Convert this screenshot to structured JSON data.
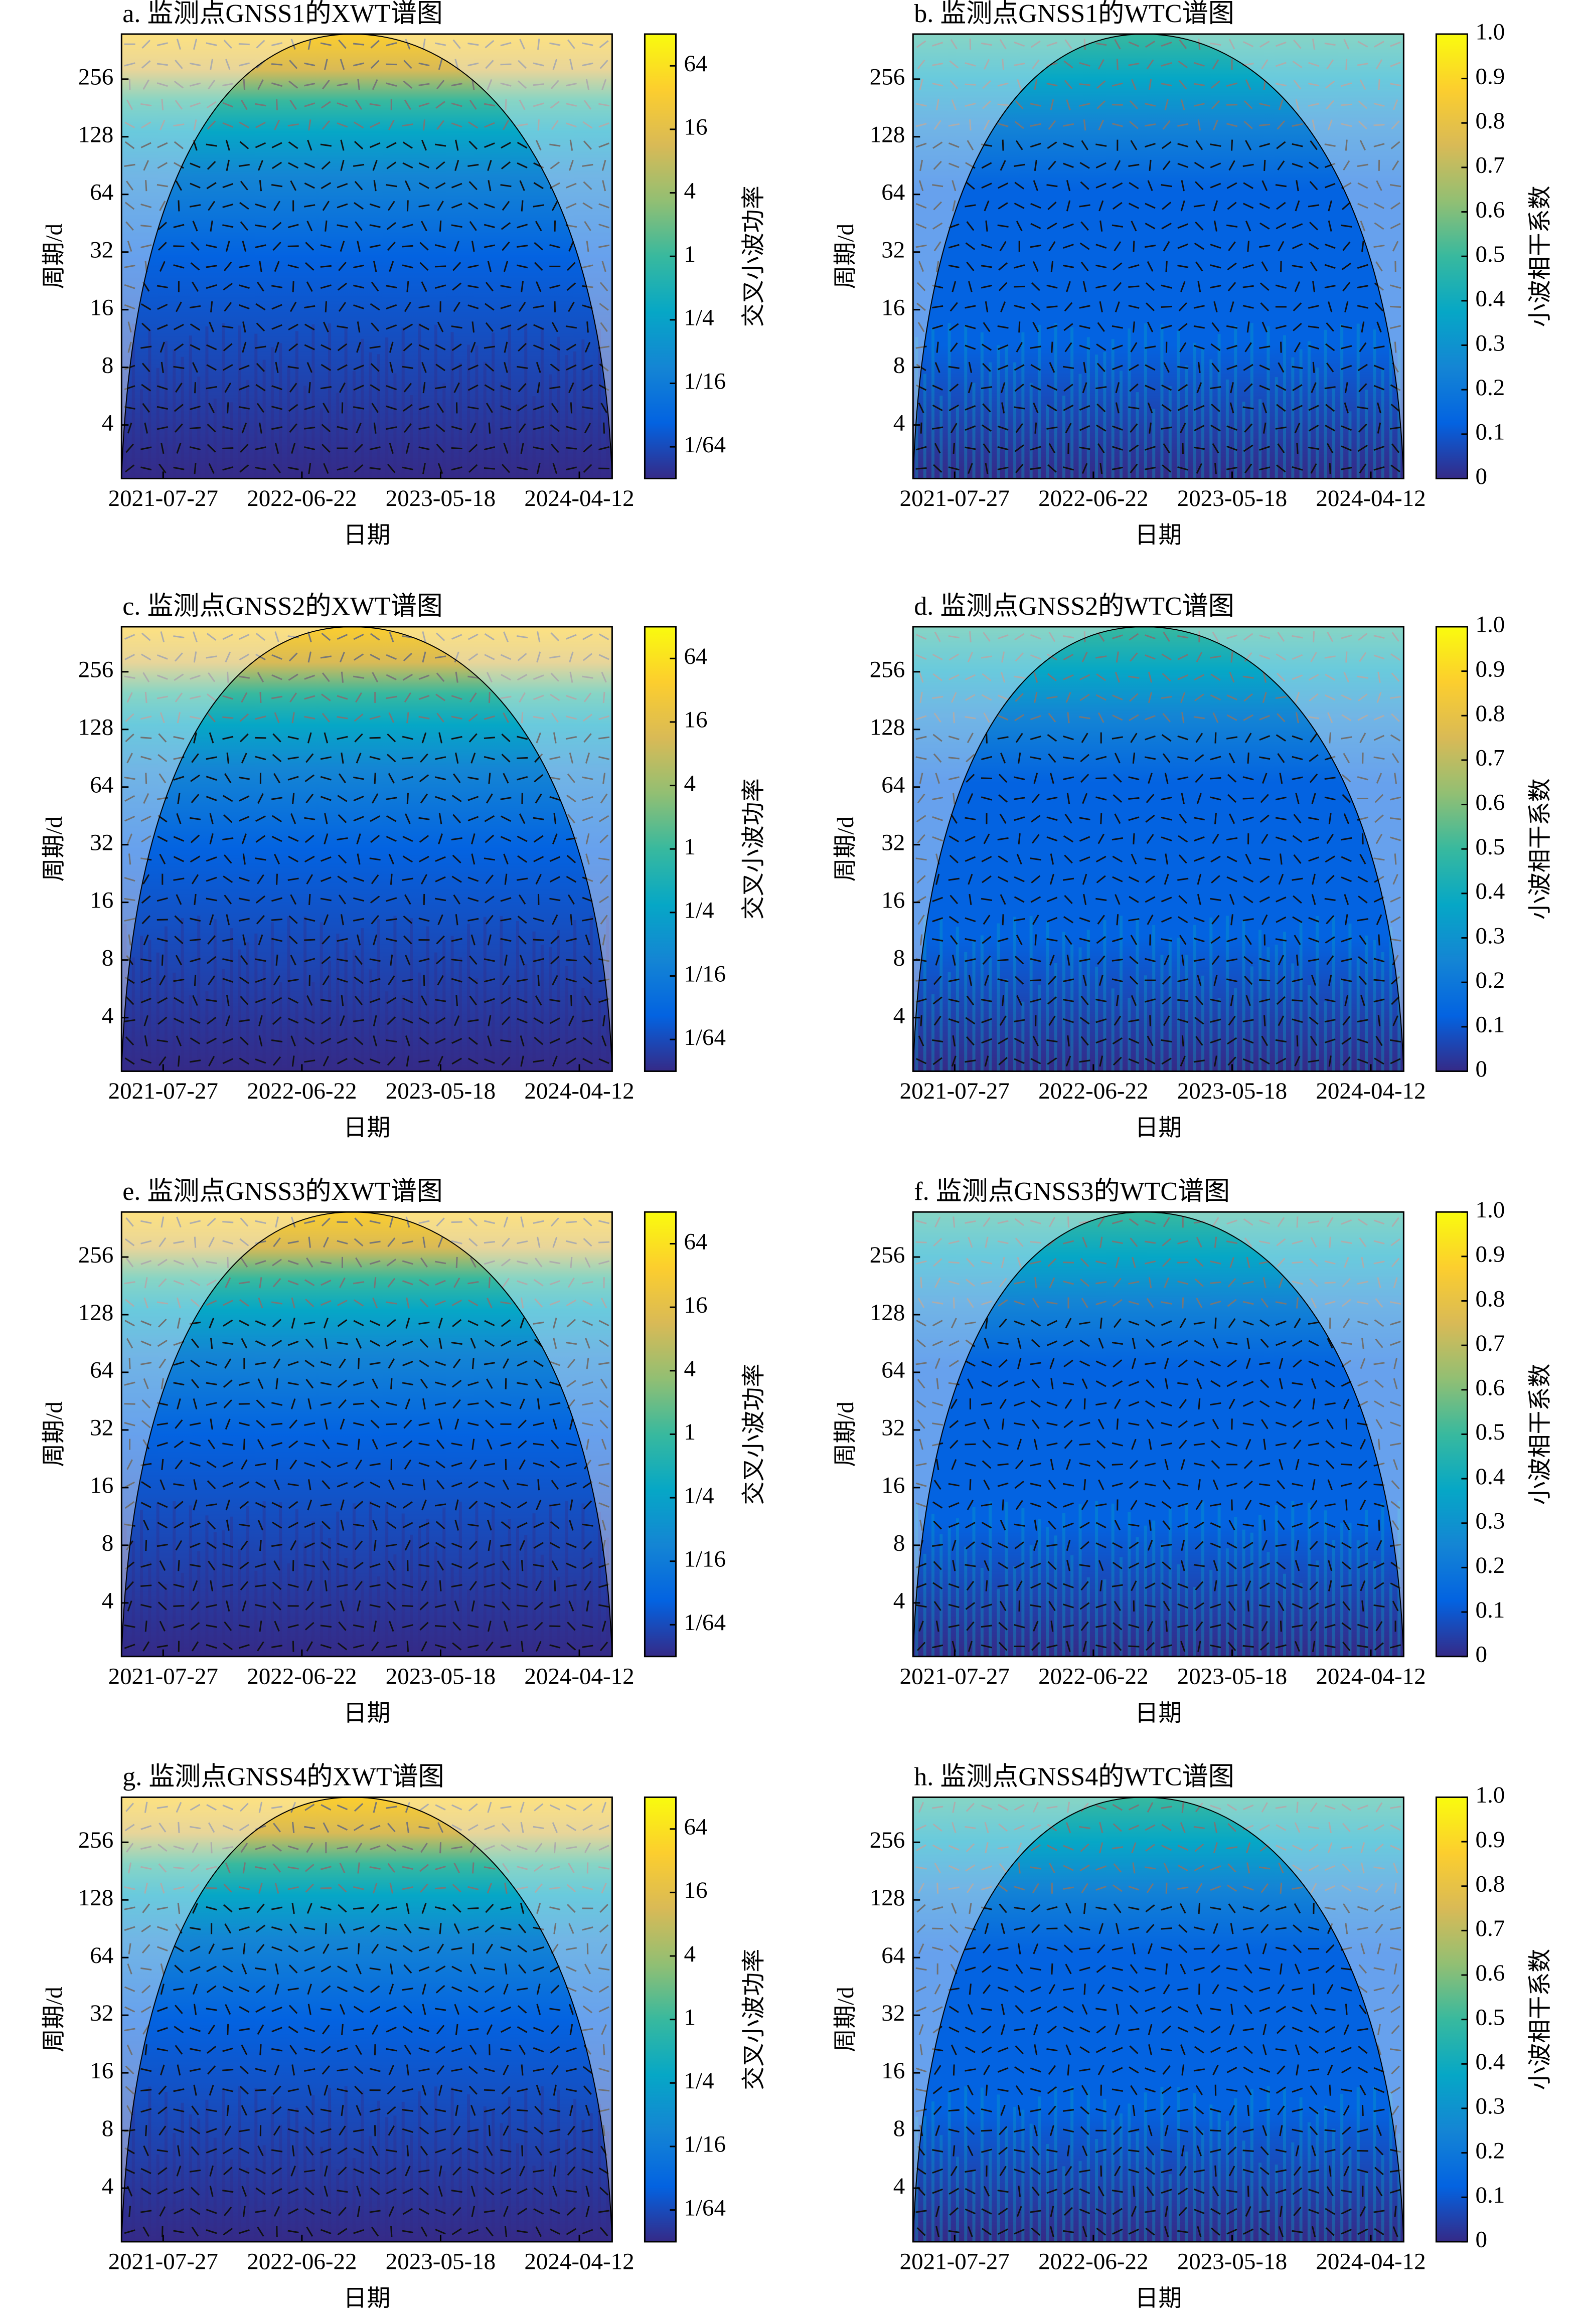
{
  "chart_data": [
    {
      "type": "heatmap",
      "title": "a. 监测点GNSS1的XWT谱图",
      "xlabel": "日期",
      "ylabel": "周期/d",
      "xlim": [
        "2021-04-19",
        "2024-06-29"
      ],
      "xticks": [
        "2021-07-27",
        "2022-06-22",
        "2023-05-18",
        "2024-04-12"
      ],
      "ylim": [
        2.1,
        440
      ],
      "yticks": [
        4,
        8,
        16,
        32,
        64,
        128,
        256
      ],
      "log_y": true,
      "colormap": [
        "#352a87",
        "#0363e1",
        "#1485d4",
        "#06a7c6",
        "#38b99e",
        "#92bf73",
        "#d9ba56",
        "#fcce2e",
        "#f9fb0e"
      ],
      "colorbar": {
        "label": "交叉小波功率",
        "log": true,
        "lim": [
          0.0078125,
          128
        ],
        "ticks": [
          {
            "value": 0.015625,
            "label": "1/64"
          },
          {
            "value": 0.0625,
            "label": "1/16"
          },
          {
            "value": 0.25,
            "label": "1/4"
          },
          1,
          4,
          16,
          64
        ]
      }
    },
    {
      "type": "heatmap",
      "title": "b. 监测点GNSS1的WTC谱图",
      "xlabel": "日期",
      "ylabel": "周期/d",
      "xlim": [
        "2021-04-19",
        "2024-06-29"
      ],
      "xticks": [
        "2021-07-27",
        "2022-06-22",
        "2023-05-18",
        "2024-04-12"
      ],
      "ylim": [
        2.1,
        440
      ],
      "yticks": [
        4,
        8,
        16,
        32,
        64,
        128,
        256
      ],
      "log_y": true,
      "colormap": [
        "#352a87",
        "#0363e1",
        "#1485d4",
        "#06a7c6",
        "#38b99e",
        "#92bf73",
        "#d9ba56",
        "#fcce2e",
        "#f9fb0e"
      ],
      "colorbar": {
        "label": "小波相干系数",
        "log": false,
        "lim": [
          0,
          1
        ],
        "ticks": [
          0,
          0.1,
          0.2,
          0.3,
          0.4,
          0.5,
          0.6,
          0.7,
          0.8,
          0.9,
          {
            "value": 1,
            "label": "1.0"
          }
        ]
      }
    },
    {
      "type": "heatmap",
      "title": "c. 监测点GNSS2的XWT谱图",
      "xlabel": "日期",
      "ylabel": "周期/d",
      "xlim": [
        "2021-04-19",
        "2024-06-29"
      ],
      "xticks": [
        "2021-07-27",
        "2022-06-22",
        "2023-05-18",
        "2024-04-12"
      ],
      "ylim": [
        2.1,
        440
      ],
      "yticks": [
        4,
        8,
        16,
        32,
        64,
        128,
        256
      ],
      "log_y": true,
      "colormap": [
        "#352a87",
        "#0363e1",
        "#1485d4",
        "#06a7c6",
        "#38b99e",
        "#92bf73",
        "#d9ba56",
        "#fcce2e",
        "#f9fb0e"
      ],
      "colorbar": {
        "label": "交叉小波功率",
        "log": true,
        "lim": [
          0.0078125,
          128
        ],
        "ticks": [
          {
            "value": 0.015625,
            "label": "1/64"
          },
          {
            "value": 0.0625,
            "label": "1/16"
          },
          {
            "value": 0.25,
            "label": "1/4"
          },
          1,
          4,
          16,
          64
        ]
      }
    },
    {
      "type": "heatmap",
      "title": "d. 监测点GNSS2的WTC谱图",
      "xlabel": "日期",
      "ylabel": "周期/d",
      "xlim": [
        "2021-04-19",
        "2024-06-29"
      ],
      "xticks": [
        "2021-07-27",
        "2022-06-22",
        "2023-05-18",
        "2024-04-12"
      ],
      "ylim": [
        2.1,
        440
      ],
      "yticks": [
        4,
        8,
        16,
        32,
        64,
        128,
        256
      ],
      "log_y": true,
      "colormap": [
        "#352a87",
        "#0363e1",
        "#1485d4",
        "#06a7c6",
        "#38b99e",
        "#92bf73",
        "#d9ba56",
        "#fcce2e",
        "#f9fb0e"
      ],
      "colorbar": {
        "label": "小波相干系数",
        "log": false,
        "lim": [
          0,
          1
        ],
        "ticks": [
          0,
          0.1,
          0.2,
          0.3,
          0.4,
          0.5,
          0.6,
          0.7,
          0.8,
          0.9,
          {
            "value": 1,
            "label": "1.0"
          }
        ]
      }
    },
    {
      "type": "heatmap",
      "title": "e. 监测点GNSS3的XWT谱图",
      "xlabel": "日期",
      "ylabel": "周期/d",
      "xlim": [
        "2021-04-19",
        "2024-06-29"
      ],
      "xticks": [
        "2021-07-27",
        "2022-06-22",
        "2023-05-18",
        "2024-04-12"
      ],
      "ylim": [
        2.1,
        440
      ],
      "yticks": [
        4,
        8,
        16,
        32,
        64,
        128,
        256
      ],
      "log_y": true,
      "colormap": [
        "#352a87",
        "#0363e1",
        "#1485d4",
        "#06a7c6",
        "#38b99e",
        "#92bf73",
        "#d9ba56",
        "#fcce2e",
        "#f9fb0e"
      ],
      "colorbar": {
        "label": "交叉小波功率",
        "log": true,
        "lim": [
          0.0078125,
          128
        ],
        "ticks": [
          {
            "value": 0.015625,
            "label": "1/64"
          },
          {
            "value": 0.0625,
            "label": "1/16"
          },
          {
            "value": 0.25,
            "label": "1/4"
          },
          1,
          4,
          16,
          64
        ]
      }
    },
    {
      "type": "heatmap",
      "title": "f. 监测点GNSS3的WTC谱图",
      "xlabel": "日期",
      "ylabel": "周期/d",
      "xlim": [
        "2021-04-19",
        "2024-06-29"
      ],
      "xticks": [
        "2021-07-27",
        "2022-06-22",
        "2023-05-18",
        "2024-04-12"
      ],
      "ylim": [
        2.1,
        440
      ],
      "yticks": [
        4,
        8,
        16,
        32,
        64,
        128,
        256
      ],
      "log_y": true,
      "colormap": [
        "#352a87",
        "#0363e1",
        "#1485d4",
        "#06a7c6",
        "#38b99e",
        "#92bf73",
        "#d9ba56",
        "#fcce2e",
        "#f9fb0e"
      ],
      "colorbar": {
        "label": "小波相干系数",
        "log": false,
        "lim": [
          0,
          1
        ],
        "ticks": [
          0,
          0.1,
          0.2,
          0.3,
          0.4,
          0.5,
          0.6,
          0.7,
          0.8,
          0.9,
          {
            "value": 1,
            "label": "1.0"
          }
        ]
      }
    },
    {
      "type": "heatmap",
      "title": "g. 监测点GNSS4的XWT谱图",
      "xlabel": "日期",
      "ylabel": "周期/d",
      "xlim": [
        "2021-04-19",
        "2024-06-29"
      ],
      "xticks": [
        "2021-07-27",
        "2022-06-22",
        "2023-05-18",
        "2024-04-12"
      ],
      "ylim": [
        2.1,
        440
      ],
      "yticks": [
        4,
        8,
        16,
        32,
        64,
        128,
        256
      ],
      "log_y": true,
      "colormap": [
        "#352a87",
        "#0363e1",
        "#1485d4",
        "#06a7c6",
        "#38b99e",
        "#92bf73",
        "#d9ba56",
        "#fcce2e",
        "#f9fb0e"
      ],
      "colorbar": {
        "label": "交叉小波功率",
        "log": true,
        "lim": [
          0.0078125,
          128
        ],
        "ticks": [
          {
            "value": 0.015625,
            "label": "1/64"
          },
          {
            "value": 0.0625,
            "label": "1/16"
          },
          {
            "value": 0.25,
            "label": "1/4"
          },
          1,
          4,
          16,
          64
        ]
      }
    },
    {
      "type": "heatmap",
      "title": "h. 监测点GNSS4的WTC谱图",
      "xlabel": "日期",
      "ylabel": "周期/d",
      "xlim": [
        "2021-04-19",
        "2024-06-29"
      ],
      "xticks": [
        "2021-07-27",
        "2022-06-22",
        "2023-05-18",
        "2024-04-12"
      ],
      "ylim": [
        2.1,
        440
      ],
      "yticks": [
        4,
        8,
        16,
        32,
        64,
        128,
        256
      ],
      "log_y": true,
      "colormap": [
        "#352a87",
        "#0363e1",
        "#1485d4",
        "#06a7c6",
        "#38b99e",
        "#92bf73",
        "#d9ba56",
        "#fcce2e",
        "#f9fb0e"
      ],
      "colorbar": {
        "label": "小波相干系数",
        "log": false,
        "lim": [
          0,
          1
        ],
        "ticks": [
          0,
          0.1,
          0.2,
          0.3,
          0.4,
          0.5,
          0.6,
          0.7,
          0.8,
          0.9,
          {
            "value": 1,
            "label": "1.0"
          }
        ]
      }
    }
  ]
}
